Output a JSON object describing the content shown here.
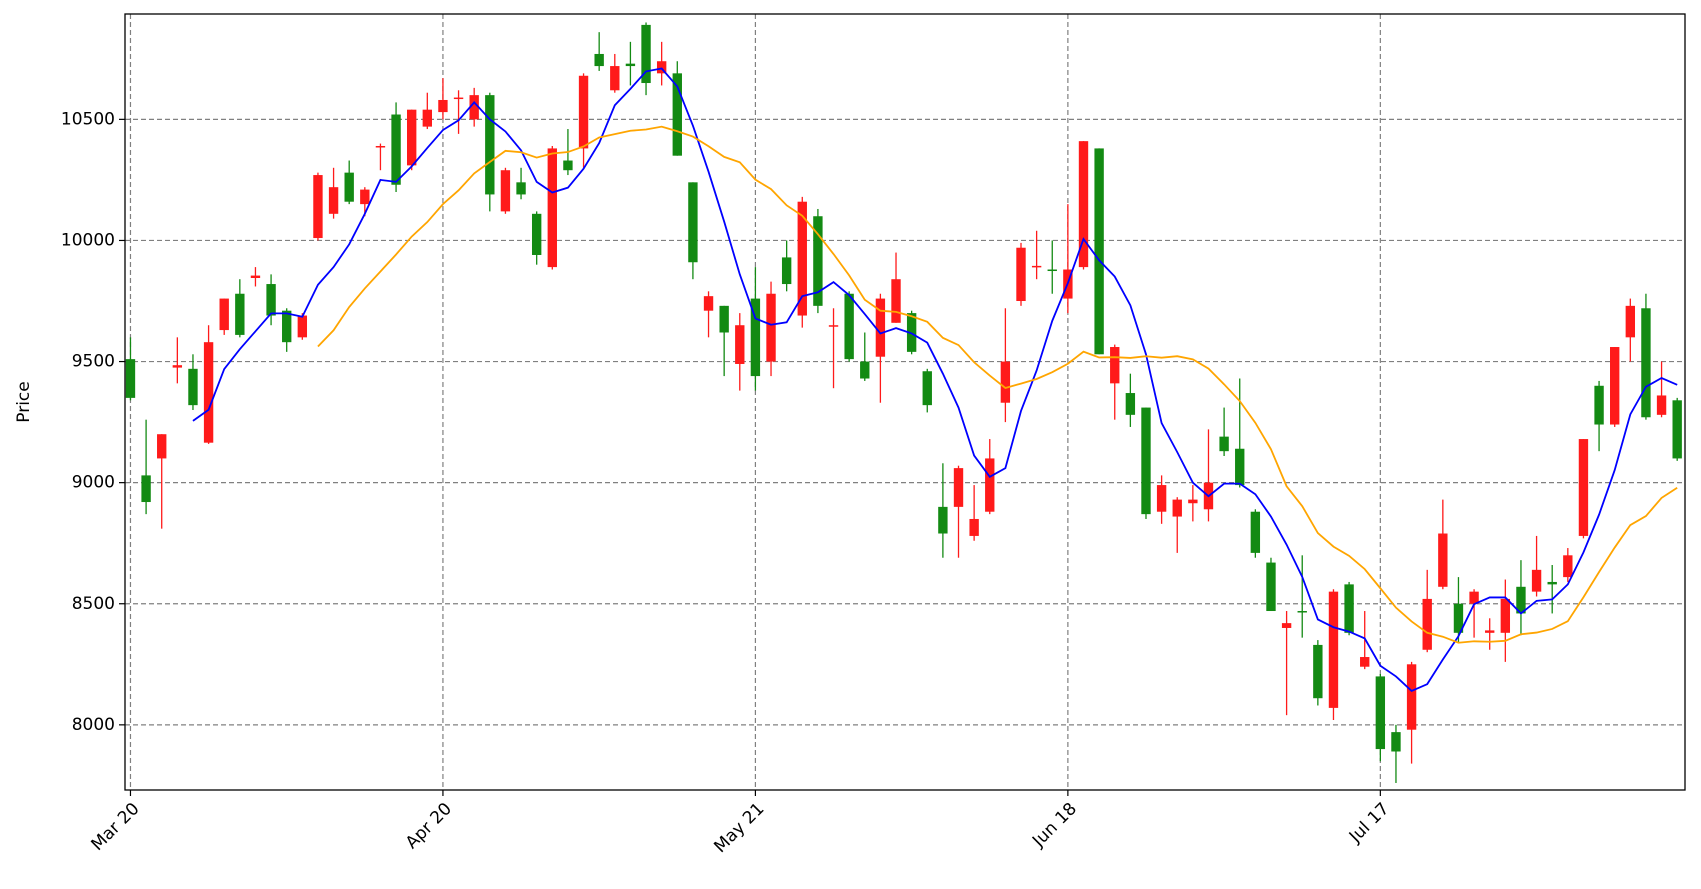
{
  "chart_data": {
    "type": "candlestick",
    "y_label": "Price",
    "categories": [
      "Mar 20",
      null,
      null,
      null,
      null,
      null,
      null,
      null,
      null,
      null,
      null,
      null,
      null,
      null,
      null,
      null,
      null,
      null,
      null,
      null,
      "Apr 20",
      null,
      null,
      null,
      null,
      null,
      null,
      null,
      null,
      null,
      null,
      null,
      null,
      null,
      null,
      null,
      null,
      null,
      null,
      null,
      "May 21",
      null,
      null,
      null,
      null,
      null,
      null,
      null,
      null,
      null,
      null,
      null,
      null,
      null,
      null,
      null,
      null,
      null,
      null,
      null,
      "Jun 18",
      null,
      null,
      null,
      null,
      null,
      null,
      null,
      null,
      null,
      null,
      null,
      null,
      null,
      null,
      null,
      null,
      null,
      null,
      null,
      "Jul 17",
      null,
      null,
      null,
      null,
      null,
      null,
      null,
      null,
      null,
      null,
      null,
      null,
      null,
      null,
      null,
      null,
      null,
      null,
      null
    ],
    "open": [
      9510,
      9030,
      9100,
      9475,
      9470,
      9165,
      9630,
      9780,
      9845,
      9820,
      9710,
      9600,
      10010,
      10110,
      10280,
      10150,
      10385,
      10520,
      10310,
      10470,
      10530,
      10585,
      10500,
      10600,
      10120,
      10240,
      10110,
      9890,
      10330,
      10380,
      10770,
      10620,
      10730,
      10890,
      10690,
      10690,
      10240,
      9710,
      9730,
      9490,
      9760,
      9500,
      9930,
      9690,
      10100,
      9645,
      9780,
      9500,
      9520,
      9660,
      9700,
      9460,
      8900,
      8900,
      8780,
      8880,
      9330,
      9750,
      9890,
      9880,
      9760,
      9890,
      10380,
      9410,
      9370,
      9310,
      8880,
      8860,
      8915,
      8890,
      9190,
      9140,
      8880,
      8670,
      8400,
      8470,
      8330,
      8070,
      8580,
      8240,
      8200,
      7970,
      7980,
      8310,
      8570,
      8500,
      8500,
      8380,
      8380,
      8570,
      8550,
      8590,
      8610,
      8780,
      9400,
      9240,
      9600,
      9720,
      9280,
      9340
    ],
    "high": [
      9600,
      9260,
      9200,
      9600,
      9530,
      9650,
      9760,
      9840,
      9890,
      9860,
      9720,
      9700,
      10280,
      10300,
      10330,
      10220,
      10400,
      10570,
      10540,
      10610,
      10670,
      10620,
      10630,
      10610,
      10300,
      10300,
      10120,
      10390,
      10460,
      10690,
      10860,
      10770,
      10820,
      10900,
      10820,
      10740,
      10240,
      9790,
      9730,
      9700,
      9890,
      9830,
      10000,
      10180,
      10130,
      9720,
      9790,
      9620,
      9780,
      9950,
      9710,
      9470,
      9080,
      9070,
      8990,
      9180,
      9720,
      9990,
      10040,
      10000,
      10150,
      10410,
      10380,
      9570,
      9450,
      9310,
      9030,
      8940,
      8990,
      9220,
      9310,
      9430,
      8890,
      8690,
      8470,
      8700,
      8350,
      8560,
      8590,
      8470,
      8210,
      8000,
      8260,
      8640,
      8930,
      8610,
      8560,
      8440,
      8600,
      8680,
      8780,
      8660,
      8730,
      9180,
      9420,
      9560,
      9760,
      9780,
      9500,
      9350
    ],
    "low": [
      9340,
      8870,
      8810,
      9410,
      9300,
      9160,
      9610,
      9600,
      9810,
      9650,
      9540,
      9590,
      10000,
      10090,
      10150,
      10100,
      10290,
      10200,
      10290,
      10460,
      10500,
      10440,
      10470,
      10120,
      10110,
      10170,
      9900,
      9880,
      10270,
      10300,
      10700,
      10610,
      10640,
      10600,
      10640,
      10350,
      9840,
      9600,
      9440,
      9380,
      9380,
      9440,
      9790,
      9640,
      9700,
      9390,
      9500,
      9420,
      9330,
      9660,
      9530,
      9290,
      8690,
      8690,
      8760,
      8870,
      9250,
      9730,
      9840,
      9780,
      9700,
      9880,
      9530,
      9260,
      9230,
      8850,
      8830,
      8710,
      8840,
      8840,
      9110,
      8980,
      8690,
      8470,
      8040,
      8360,
      8080,
      8020,
      8370,
      8230,
      7850,
      7760,
      7840,
      8300,
      8560,
      8340,
      8360,
      8310,
      8260,
      8370,
      8530,
      8460,
      8590,
      8770,
      9130,
      9230,
      9500,
      9260,
      9270,
      9090
    ],
    "close": [
      9350,
      8920,
      9200,
      9485,
      9320,
      9580,
      9760,
      9610,
      9855,
      9690,
      9580,
      9690,
      10270,
      10220,
      10160,
      10210,
      10390,
      10230,
      10540,
      10540,
      10580,
      10590,
      10600,
      10190,
      10290,
      10190,
      9940,
      10380,
      10290,
      10680,
      10720,
      10720,
      10720,
      10650,
      10740,
      10350,
      9910,
      9770,
      9620,
      9650,
      9440,
      9780,
      9820,
      10160,
      9730,
      9650,
      9510,
      9430,
      9760,
      9840,
      9540,
      9320,
      8790,
      9060,
      8850,
      9100,
      9500,
      9970,
      9895,
      9875,
      9880,
      10410,
      9530,
      9560,
      9280,
      8870,
      8990,
      8930,
      8930,
      9000,
      9130,
      8990,
      8710,
      8470,
      8420,
      8465,
      8110,
      8550,
      8380,
      8280,
      7900,
      7890,
      8250,
      8520,
      8790,
      8380,
      8550,
      8390,
      8520,
      8460,
      8640,
      8580,
      8700,
      9180,
      9240,
      9560,
      9730,
      9270,
      9360,
      9100
    ],
    "up_color": "#ff1a1a",
    "down_color": "#138a13",
    "series": [
      {
        "color": "#0000ff",
        "values": [
          null,
          null,
          null,
          null,
          9255,
          9301,
          9469,
          9551,
          9625,
          9699,
          9699,
          9685,
          9817,
          9890,
          9984,
          10110,
          10250,
          10242,
          10306,
          10382,
          10456,
          10496,
          10570,
          10500,
          10450,
          10372,
          10242,
          10198,
          10218,
          10296,
          10402,
          10558,
          10626,
          10698,
          10710,
          10636,
          10474,
          10284,
          10078,
          9860,
          9678,
          9652,
          9662,
          9770,
          9786,
          9828,
          9774,
          9696,
          9616,
          9638,
          9616,
          9578,
          9450,
          9310,
          9112,
          9024,
          9060,
          9296,
          9463,
          9668,
          9824,
          10006,
          9918,
          9851,
          9732,
          9530,
          9246,
          9126,
          9000,
          8944,
          8996,
          8996,
          8952,
          8860,
          8744,
          8611,
          8435,
          8403,
          8385,
          8357,
          8244,
          8200,
          8140,
          8168,
          8270,
          8366,
          8498,
          8526,
          8526,
          8460,
          8512,
          8518,
          8580,
          8712,
          8868,
          9052,
          9282,
          9396,
          9432,
          9404
        ]
      },
      {
        "color": "#ffa500",
        "values": [
          null,
          null,
          null,
          null,
          null,
          null,
          null,
          null,
          null,
          null,
          null,
          null,
          9562,
          9629,
          9725,
          9802,
          9872,
          9942,
          10016,
          10076,
          10150,
          10207,
          10277,
          10324,
          10370,
          10364,
          10342,
          10359,
          10365,
          10388,
          10425,
          10439,
          10453,
          10458,
          10470,
          10451,
          10429,
          10389,
          10345,
          10323,
          10251,
          10212,
          10145,
          10102,
          10026,
          9944,
          9856,
          9755,
          9710,
          9705,
          9687,
          9664,
          9598,
          9568,
          9497,
          9442,
          9391,
          9409,
          9428,
          9456,
          9491,
          9541,
          9517,
          9518,
          9515,
          9522,
          9516,
          9522,
          9509,
          9471,
          9406,
          9337,
          9247,
          9138,
          8985,
          8903,
          8792,
          8736,
          8698,
          8643,
          8564,
          8484,
          8427,
          8380,
          8364,
          8339,
          8345,
          8343,
          8347,
          8374,
          8381,
          8396,
          8428,
          8527,
          8631,
          8732,
          8825,
          8862,
          8937,
          8979
        ]
      }
    ],
    "ylim": [
      7731,
      10935
    ],
    "yticks": [
      8000,
      8500,
      9000,
      9500,
      10000,
      10500
    ],
    "grid": true
  }
}
